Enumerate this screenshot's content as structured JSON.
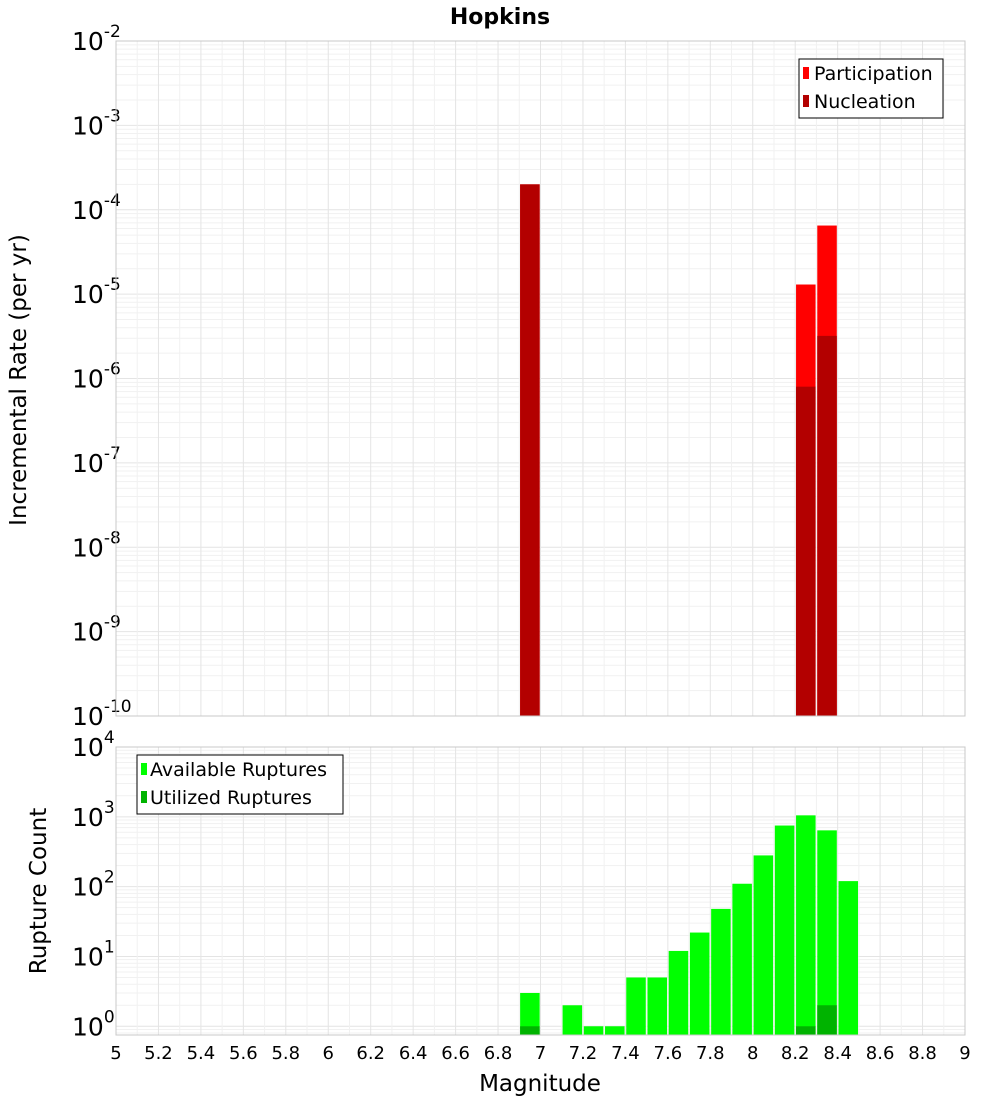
{
  "chart_data": [
    {
      "type": "bar",
      "title": "Hopkins",
      "ylabel": "Incremental Rate (per yr)",
      "xlabel": "",
      "yscale": "log",
      "ylim": [
        1e-10,
        0.01
      ],
      "xlim": [
        5,
        9
      ],
      "y_tick_bases": [
        "10",
        "10",
        "10",
        "10",
        "10",
        "10",
        "10",
        "10",
        "10"
      ],
      "y_tick_exponents": [
        "-10",
        "-9",
        "-8",
        "-7",
        "-6",
        "-5",
        "-4",
        "-3",
        "-2"
      ],
      "grid": true,
      "legend_position": "top-right",
      "series": [
        {
          "name": "Participation",
          "color": "#ff0000",
          "bins": [
            {
              "x": 6.95,
              "y": 0.0002
            },
            {
              "x": 8.25,
              "y": 1.3e-05
            },
            {
              "x": 8.35,
              "y": 6.5e-05
            }
          ]
        },
        {
          "name": "Nucleation",
          "color": "#b30000",
          "bins": [
            {
              "x": 6.95,
              "y": 0.0002
            },
            {
              "x": 8.25,
              "y": 8e-07
            },
            {
              "x": 8.35,
              "y": 3.2e-06
            }
          ]
        }
      ]
    },
    {
      "type": "bar",
      "title": "",
      "ylabel": "Rupture Count",
      "xlabel": "Magnitude",
      "yscale": "log",
      "ylim": [
        0.75,
        10000
      ],
      "xlim": [
        5,
        9
      ],
      "x_ticks": [
        "5",
        "5.2",
        "5.4",
        "5.6",
        "5.8",
        "6",
        "6.2",
        "6.4",
        "6.6",
        "6.8",
        "7",
        "7.2",
        "7.4",
        "7.6",
        "7.8",
        "8",
        "8.2",
        "8.4",
        "8.6",
        "8.8",
        "9"
      ],
      "y_tick_bases": [
        "10",
        "10",
        "10",
        "10",
        "10"
      ],
      "y_tick_exponents": [
        "0",
        "1",
        "2",
        "3",
        "4"
      ],
      "grid": true,
      "legend_position": "top-left",
      "series": [
        {
          "name": "Available Ruptures",
          "color": "#00ff00",
          "bins": [
            {
              "x": 6.95,
              "y": 3
            },
            {
              "x": 7.15,
              "y": 2
            },
            {
              "x": 7.25,
              "y": 1
            },
            {
              "x": 7.35,
              "y": 1
            },
            {
              "x": 7.45,
              "y": 5
            },
            {
              "x": 7.55,
              "y": 5
            },
            {
              "x": 7.65,
              "y": 12
            },
            {
              "x": 7.75,
              "y": 22
            },
            {
              "x": 7.85,
              "y": 48
            },
            {
              "x": 7.95,
              "y": 110
            },
            {
              "x": 8.05,
              "y": 280
            },
            {
              "x": 8.15,
              "y": 750
            },
            {
              "x": 8.25,
              "y": 1050
            },
            {
              "x": 8.35,
              "y": 640
            },
            {
              "x": 8.45,
              "y": 120
            }
          ]
        },
        {
          "name": "Utilized Ruptures",
          "color": "#00b300",
          "bins": [
            {
              "x": 6.95,
              "y": 1
            },
            {
              "x": 8.25,
              "y": 1
            },
            {
              "x": 8.35,
              "y": 2
            }
          ]
        }
      ]
    }
  ]
}
